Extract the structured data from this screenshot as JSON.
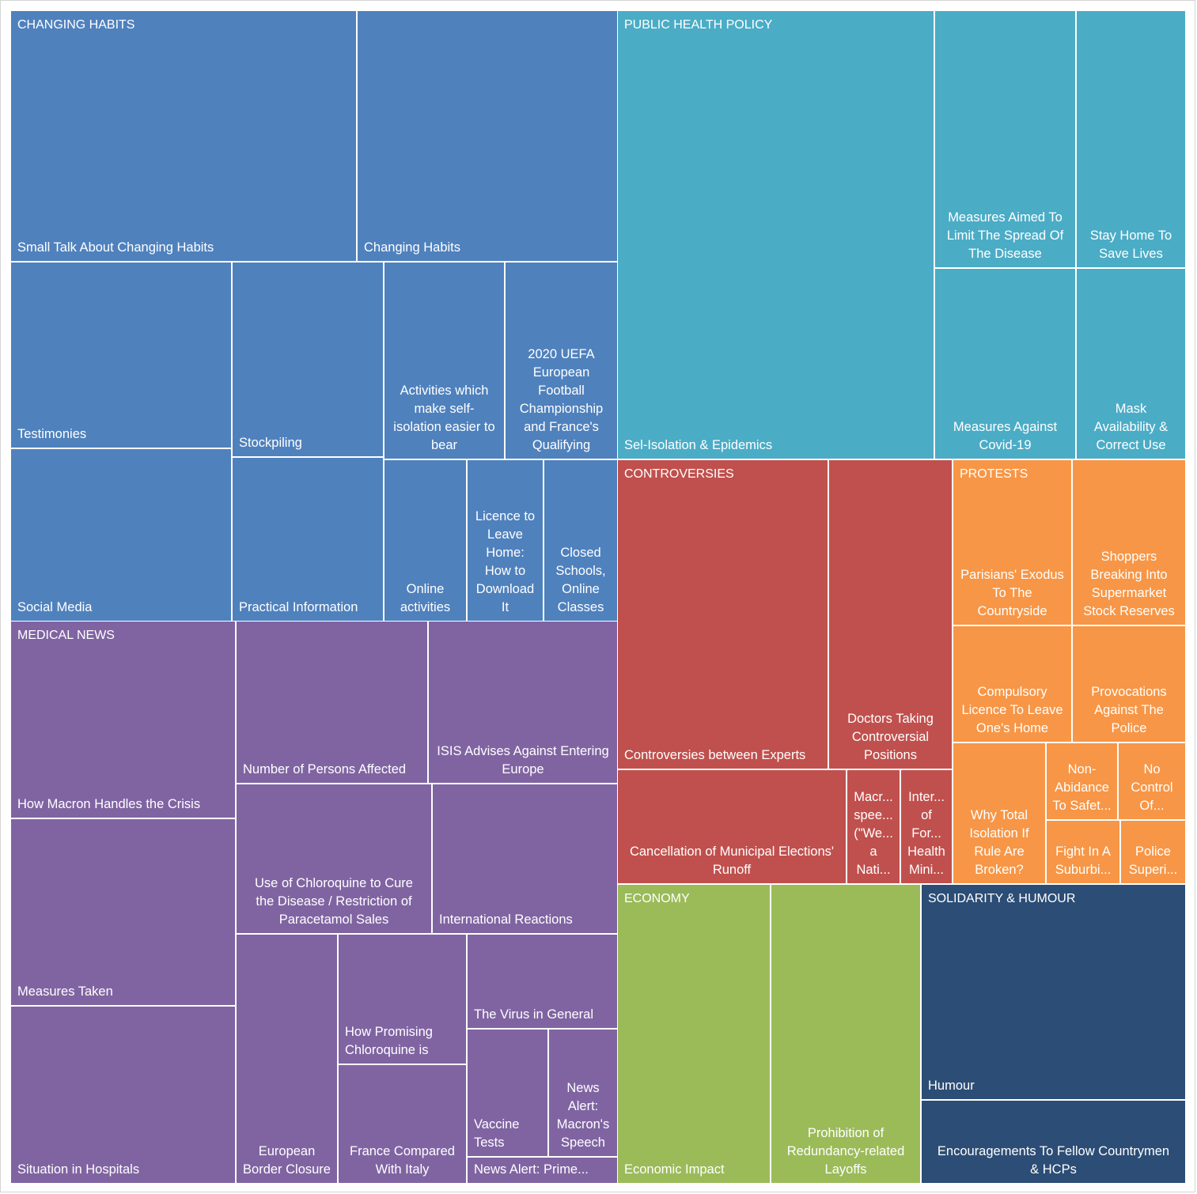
{
  "chart_data": {
    "type": "treemap",
    "groups": [
      {
        "name": "CHANGING HABITS",
        "color": "#4F81BD",
        "items": [
          {
            "label": "Small Talk About Changing Habits",
            "align": "left"
          },
          {
            "label": "Changing Habits",
            "align": "left"
          },
          {
            "label": "Testimonies",
            "align": "left"
          },
          {
            "label": "Social Media",
            "align": "left"
          },
          {
            "label": "Stockpiling",
            "align": "left"
          },
          {
            "label": "Practical Information",
            "align": "left"
          },
          {
            "label": "Activities which\nmake self-\nisolation easier to\nbear",
            "align": "center"
          },
          {
            "label": "2020 UEFA\nEuropean\nFootball\nChampionship\nand France's\nQualifying",
            "align": "center"
          },
          {
            "label": "Online\nactivities",
            "align": "center"
          },
          {
            "label": "Licence to\nLeave\nHome:\nHow to\nDownload\nIt",
            "align": "center"
          },
          {
            "label": "Closed\nSchools,\nOnline\nClasses",
            "align": "center"
          }
        ]
      },
      {
        "name": "PUBLIC HEALTH POLICY",
        "color": "#4BACC6",
        "items": [
          {
            "label": "Sel-Isolation & Epidemics",
            "align": "left"
          },
          {
            "label": "Measures Aimed To\nLimit The Spread Of\nThe Disease",
            "align": "center"
          },
          {
            "label": "Stay Home To\nSave Lives",
            "align": "center"
          },
          {
            "label": "Measures Against\nCovid-19",
            "align": "center"
          },
          {
            "label": "Mask\nAvailability &\nCorrect Use",
            "align": "center"
          }
        ]
      },
      {
        "name": "CONTROVERSIES",
        "color": "#C0504D",
        "items": [
          {
            "label": "Controversies between Experts",
            "align": "left"
          },
          {
            "label": "Doctors Taking\nControversial\nPositions",
            "align": "center"
          },
          {
            "label": "Cancellation of Municipal Elections'\nRunoff",
            "align": "center"
          },
          {
            "label": "Macr...\nspee...\n(\"We...\na\nNati...",
            "align": "center"
          },
          {
            "label": "Inter...\nof\nFor...\nHealth\nMini...",
            "align": "center"
          }
        ]
      },
      {
        "name": "PROTESTS",
        "color": "#F79646",
        "items": [
          {
            "label": "Parisians' Exodus\nTo The\nCountryside",
            "align": "center"
          },
          {
            "label": "Shoppers\nBreaking Into\nSupermarket\nStock Reserves",
            "align": "center"
          },
          {
            "label": "Compulsory\nLicence To Leave\nOne's Home",
            "align": "center"
          },
          {
            "label": "Provocations\nAgainst The\nPolice",
            "align": "center"
          },
          {
            "label": "Why Total\nIsolation If\nRule Are\nBroken?",
            "align": "center"
          },
          {
            "label": "Non-\nAbidance\nTo Safet...",
            "align": "center"
          },
          {
            "label": "No\nControl\nOf...",
            "align": "center"
          },
          {
            "label": "Fight In A\nSuburbi...",
            "align": "center"
          },
          {
            "label": "Police\nSuperi...",
            "align": "center"
          }
        ]
      },
      {
        "name": "MEDICAL NEWS",
        "color": "#8064A2",
        "items": [
          {
            "label": "How Macron Handles the Crisis",
            "align": "left"
          },
          {
            "label": "Measures Taken",
            "align": "left"
          },
          {
            "label": "Situation in Hospitals",
            "align": "left"
          },
          {
            "label": "Number of Persons Affected",
            "align": "left"
          },
          {
            "label": "ISIS Advises Against Entering\nEurope",
            "align": "center"
          },
          {
            "label": "Use of Chloroquine to Cure\nthe Disease / Restriction of\nParacetamol Sales",
            "align": "center"
          },
          {
            "label": "International Reactions",
            "align": "left"
          },
          {
            "label": "European\nBorder Closure",
            "align": "center"
          },
          {
            "label": "How Promising\nChloroquine is",
            "align": "left"
          },
          {
            "label": "France Compared\nWith Italy",
            "align": "center"
          },
          {
            "label": "The Virus in General",
            "align": "left"
          },
          {
            "label": "Vaccine\nTests",
            "align": "left"
          },
          {
            "label": "News\nAlert:\nMacron's\nSpeech",
            "align": "center"
          },
          {
            "label": "News Alert: Prime...",
            "align": "left"
          }
        ]
      },
      {
        "name": "ECONOMY",
        "color": "#9BBB59",
        "items": [
          {
            "label": "Economic Impact",
            "align": "left"
          },
          {
            "label": "Prohibition of\nRedundancy-related\nLayoffs",
            "align": "center"
          }
        ]
      },
      {
        "name": "SOLIDARITY & HUMOUR",
        "color": "#2C4D75",
        "items": [
          {
            "label": "Humour",
            "align": "left"
          },
          {
            "label": "Encouragements To Fellow Countrymen\n& HCPs",
            "align": "center"
          }
        ]
      }
    ]
  }
}
